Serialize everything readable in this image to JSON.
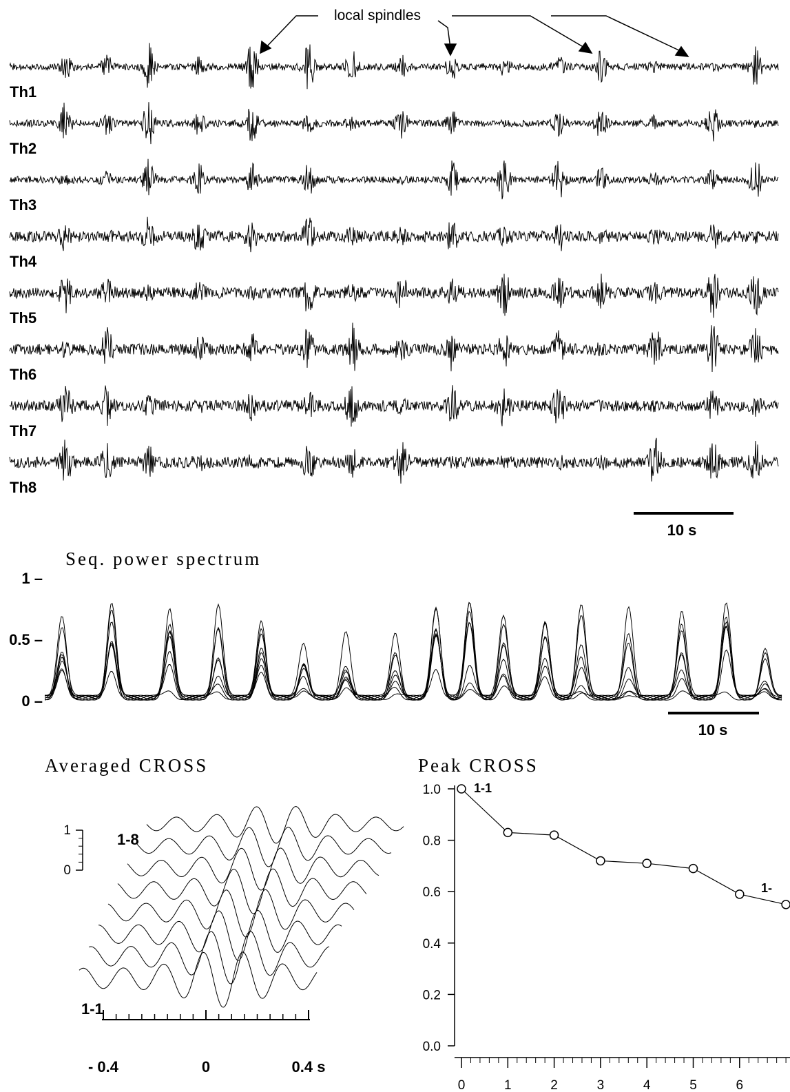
{
  "chart_data": [
    {
      "type": "trace",
      "labels": [
        "Th1",
        "Th2",
        "Th3",
        "Th4",
        "Th5",
        "Th6",
        "Th7",
        "Th8"
      ],
      "annotation": "local spindles",
      "scale_bar": "10 s"
    },
    {
      "type": "spectrum",
      "title": "Seq. power spectrum",
      "ylim": [
        0,
        1
      ],
      "yticks": [
        {
          "value": 0,
          "label": "0 –"
        },
        {
          "value": 0.5,
          "label": "0.5 –"
        },
        {
          "value": 1,
          "label": "1 –"
        }
      ],
      "scale_bar": "10 s"
    },
    {
      "type": "cross",
      "title": "Averaged CROSS",
      "xlim": [
        -0.4,
        0.4
      ],
      "xticks": [
        {
          "value": -0.4,
          "label": "- 0.4"
        },
        0,
        {
          "value": 0.4,
          "label": "0.4 s"
        }
      ],
      "scale_ticks": [
        1,
        0
      ],
      "annotations": [
        "1-8",
        "1-1"
      ]
    },
    {
      "type": "line",
      "title": "Peak CROSS",
      "x": [
        0,
        1,
        2,
        3,
        4,
        5,
        6,
        7
      ],
      "values": [
        1.0,
        0.83,
        0.82,
        0.72,
        0.71,
        0.69,
        0.59,
        0.55
      ],
      "xlim": [
        -0.15,
        7.1
      ],
      "ylim": [
        0,
        1
      ],
      "xticks": [
        0,
        1,
        2,
        3,
        4,
        5,
        6
      ],
      "yticks": [
        {
          "value": 0,
          "label": "0.0"
        },
        0.2,
        0.4,
        0.6,
        0.8,
        {
          "value": 1,
          "label": "1.0"
        }
      ],
      "color": "#000",
      "marker": "circle",
      "annotations": [
        "1-1",
        "1-"
      ]
    }
  ]
}
